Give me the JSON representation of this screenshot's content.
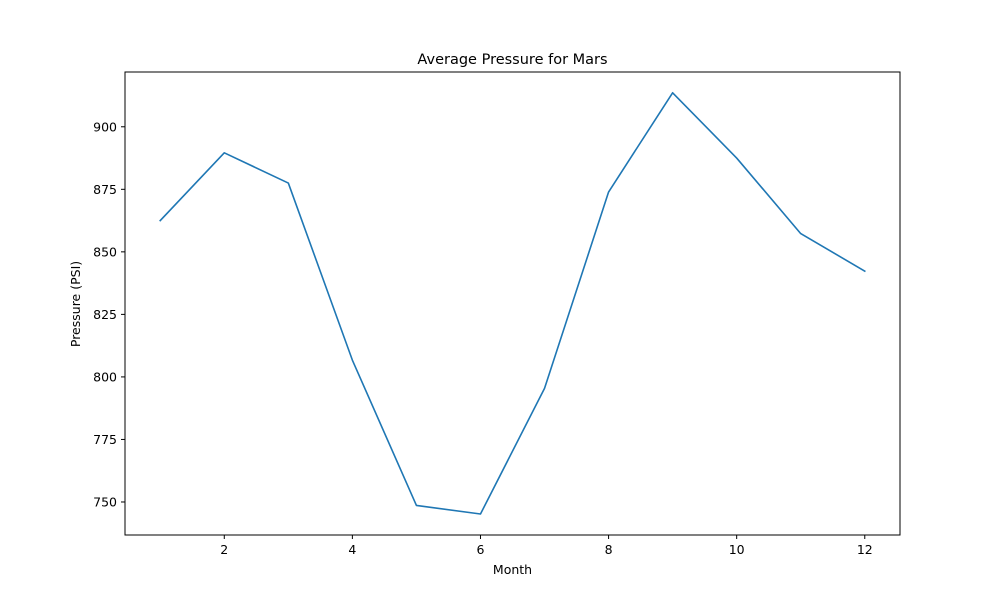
{
  "chart_data": {
    "type": "line",
    "title": "Average Pressure for Mars",
    "xlabel": "Month",
    "ylabel": "Pressure (PSI)",
    "x": [
      1,
      2,
      3,
      4,
      5,
      6,
      7,
      8,
      9,
      10,
      11,
      12
    ],
    "series": [
      {
        "values": [
          862.5,
          889.6,
          877.5,
          806.7,
          748.6,
          745.2,
          795.4,
          873.9,
          913.6,
          887.5,
          857.3,
          842.3
        ],
        "color": "#1f77b4"
      }
    ],
    "xticks": [
      2,
      4,
      6,
      8,
      10,
      12
    ],
    "yticks": [
      750,
      775,
      800,
      825,
      850,
      875,
      900
    ],
    "xlim": [
      0.45,
      12.55
    ],
    "ylim": [
      736.8,
      921.9
    ],
    "grid": false,
    "legend": "none"
  }
}
